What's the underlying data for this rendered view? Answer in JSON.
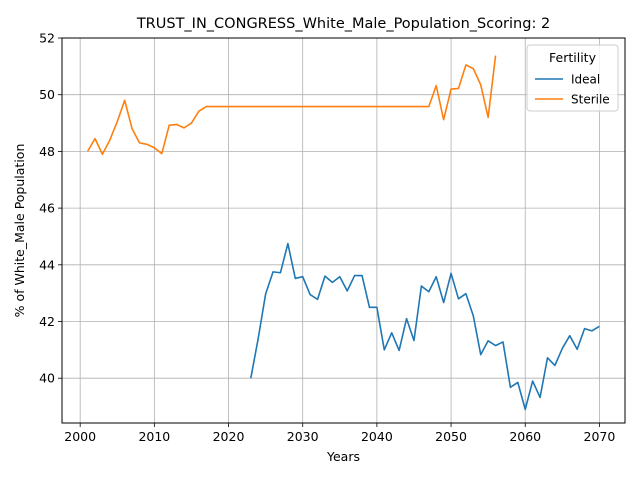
{
  "chart_data": {
    "type": "line",
    "title": "TRUST_IN_CONGRESS_White_Male_Population_Scoring: 2",
    "xlabel": "Years",
    "ylabel": "% of White_Male Population",
    "xlim": [
      1997.55,
      2073.45
    ],
    "ylim": [
      38.42,
      52.0
    ],
    "xticks": [
      2000,
      2010,
      2020,
      2030,
      2040,
      2050,
      2060,
      2070
    ],
    "yticks": [
      40,
      42,
      44,
      46,
      48,
      50,
      52
    ],
    "grid": true,
    "legend": {
      "title": "Fertility",
      "placement": "top-right",
      "entries": [
        "Ideal",
        "Sterile"
      ]
    },
    "series": [
      {
        "name": "Ideal",
        "color": "#1f77b4",
        "x": [
          2023,
          2024,
          2025,
          2026,
          2027,
          2028,
          2029,
          2030,
          2031,
          2032,
          2033,
          2034,
          2035,
          2036,
          2037,
          2038,
          2039,
          2040,
          2041,
          2042,
          2043,
          2044,
          2045,
          2046,
          2047,
          2048,
          2049,
          2050,
          2051,
          2052,
          2053,
          2054,
          2055,
          2056,
          2057,
          2058,
          2059,
          2060,
          2061,
          2062,
          2063,
          2064,
          2065,
          2066,
          2067,
          2068,
          2069,
          2070
        ],
        "values": [
          40.0,
          41.4,
          42.97,
          43.75,
          43.72,
          44.75,
          43.52,
          43.58,
          42.95,
          42.78,
          43.6,
          43.38,
          43.58,
          43.08,
          43.62,
          43.62,
          42.5,
          42.5,
          41.0,
          41.6,
          40.98,
          42.1,
          41.33,
          43.25,
          43.05,
          43.58,
          42.67,
          43.7,
          42.8,
          42.98,
          42.2,
          40.83,
          41.32,
          41.15,
          41.28,
          39.68,
          39.85,
          38.9,
          39.9,
          39.32,
          40.72,
          40.45,
          41.05,
          41.5,
          41.02,
          41.75,
          41.67,
          41.83
        ]
      },
      {
        "name": "Sterile",
        "color": "#ff7f0e",
        "x": [
          2001,
          2002,
          2003,
          2004,
          2005,
          2006,
          2007,
          2008,
          2009,
          2010,
          2011,
          2012,
          2013,
          2014,
          2015,
          2016,
          2017,
          2018,
          2019,
          2020,
          2021,
          2022,
          2023,
          2024,
          2025,
          2026,
          2027,
          2028,
          2029,
          2030,
          2031,
          2032,
          2033,
          2034,
          2035,
          2036,
          2037,
          2038,
          2039,
          2040,
          2041,
          2042,
          2043,
          2044,
          2045,
          2046,
          2047,
          2048,
          2049,
          2050,
          2051,
          2052,
          2053,
          2054,
          2055,
          2056
        ],
        "values": [
          48.0,
          48.45,
          47.9,
          48.4,
          49.05,
          49.8,
          48.8,
          48.3,
          48.25,
          48.13,
          47.92,
          48.92,
          48.95,
          48.83,
          49.0,
          49.42,
          49.58,
          49.58,
          49.58,
          49.58,
          49.58,
          49.58,
          49.58,
          49.58,
          49.58,
          49.58,
          49.58,
          49.58,
          49.58,
          49.58,
          49.58,
          49.58,
          49.58,
          49.58,
          49.58,
          49.58,
          49.58,
          49.58,
          49.58,
          49.58,
          49.58,
          49.58,
          49.58,
          49.58,
          49.58,
          49.58,
          49.58,
          50.32,
          49.12,
          50.2,
          50.22,
          51.05,
          50.92,
          50.35,
          49.2,
          51.38
        ]
      }
    ]
  }
}
